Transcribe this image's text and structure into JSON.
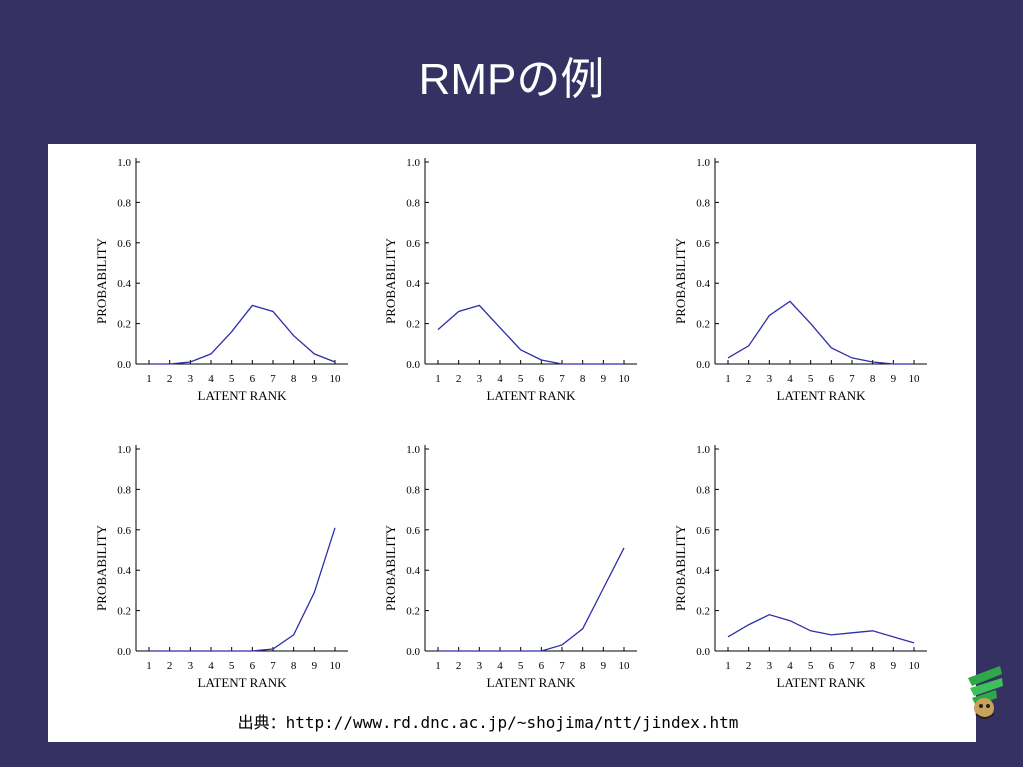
{
  "slide": {
    "title": "RMPの例",
    "source": "出典：http://www.rd.dnc.ac.jp/~shojima/ntt/jindex.htm"
  },
  "colors": {
    "background": "#353263",
    "line": "#2e2ea8",
    "axis": "#000000"
  },
  "chart_data": [
    {
      "type": "line",
      "xlabel": "LATENT RANK",
      "ylabel": "PROBABILITY",
      "xlim": [
        1,
        10
      ],
      "ylim": [
        0,
        1
      ],
      "xticks": [
        "1",
        "2",
        "3",
        "4",
        "5",
        "6",
        "7",
        "8",
        "9",
        "10"
      ],
      "yticks": [
        "0.0",
        "0.2",
        "0.4",
        "0.6",
        "0.8",
        "1.0"
      ],
      "x": [
        1,
        2,
        3,
        4,
        5,
        6,
        7,
        8,
        9,
        10
      ],
      "values": [
        0.0,
        0.0,
        0.01,
        0.05,
        0.16,
        0.29,
        0.26,
        0.14,
        0.05,
        0.01
      ]
    },
    {
      "type": "line",
      "xlabel": "LATENT RANK",
      "ylabel": "PROBABILITY",
      "xlim": [
        1,
        10
      ],
      "ylim": [
        0,
        1
      ],
      "xticks": [
        "1",
        "2",
        "3",
        "4",
        "5",
        "6",
        "7",
        "8",
        "9",
        "10"
      ],
      "yticks": [
        "0.0",
        "0.2",
        "0.4",
        "0.6",
        "0.8",
        "1.0"
      ],
      "x": [
        1,
        2,
        3,
        4,
        5,
        6,
        7,
        8,
        9,
        10
      ],
      "values": [
        0.17,
        0.26,
        0.29,
        0.18,
        0.07,
        0.02,
        0.0,
        0.0,
        0.0,
        0.0
      ]
    },
    {
      "type": "line",
      "xlabel": "LATENT RANK",
      "ylabel": "PROBABILITY",
      "xlim": [
        1,
        10
      ],
      "ylim": [
        0,
        1
      ],
      "xticks": [
        "1",
        "2",
        "3",
        "4",
        "5",
        "6",
        "7",
        "8",
        "9",
        "10"
      ],
      "yticks": [
        "0.0",
        "0.2",
        "0.4",
        "0.6",
        "0.8",
        "1.0"
      ],
      "x": [
        1,
        2,
        3,
        4,
        5,
        6,
        7,
        8,
        9,
        10
      ],
      "values": [
        0.03,
        0.09,
        0.24,
        0.31,
        0.2,
        0.08,
        0.03,
        0.01,
        0.0,
        0.0
      ]
    },
    {
      "type": "line",
      "xlabel": "LATENT RANK",
      "ylabel": "PROBABILITY",
      "xlim": [
        1,
        10
      ],
      "ylim": [
        0,
        1
      ],
      "xticks": [
        "1",
        "2",
        "3",
        "4",
        "5",
        "6",
        "7",
        "8",
        "9",
        "10"
      ],
      "yticks": [
        "0.0",
        "0.2",
        "0.4",
        "0.6",
        "0.8",
        "1.0"
      ],
      "x": [
        1,
        2,
        3,
        4,
        5,
        6,
        7,
        8,
        9,
        10
      ],
      "values": [
        0.0,
        0.0,
        0.0,
        0.0,
        0.0,
        0.0,
        0.01,
        0.08,
        0.29,
        0.61
      ]
    },
    {
      "type": "line",
      "xlabel": "LATENT RANK",
      "ylabel": "PROBABILITY",
      "xlim": [
        1,
        10
      ],
      "ylim": [
        0,
        1
      ],
      "xticks": [
        "1",
        "2",
        "3",
        "4",
        "5",
        "6",
        "7",
        "8",
        "9",
        "10"
      ],
      "yticks": [
        "0.0",
        "0.2",
        "0.4",
        "0.6",
        "0.8",
        "1.0"
      ],
      "x": [
        1,
        2,
        3,
        4,
        5,
        6,
        7,
        8,
        9,
        10
      ],
      "values": [
        0.0,
        0.0,
        0.0,
        0.0,
        0.0,
        0.0,
        0.03,
        0.11,
        0.31,
        0.51
      ]
    },
    {
      "type": "line",
      "xlabel": "LATENT RANK",
      "ylabel": "PROBABILITY",
      "xlim": [
        1,
        10
      ],
      "ylim": [
        0,
        1
      ],
      "xticks": [
        "1",
        "2",
        "3",
        "4",
        "5",
        "6",
        "7",
        "8",
        "9",
        "10"
      ],
      "yticks": [
        "0.0",
        "0.2",
        "0.4",
        "0.6",
        "0.8",
        "1.0"
      ],
      "x": [
        1,
        2,
        3,
        4,
        5,
        6,
        7,
        8,
        9,
        10
      ],
      "values": [
        0.07,
        0.13,
        0.18,
        0.15,
        0.1,
        0.08,
        0.09,
        0.1,
        0.07,
        0.04
      ]
    }
  ]
}
